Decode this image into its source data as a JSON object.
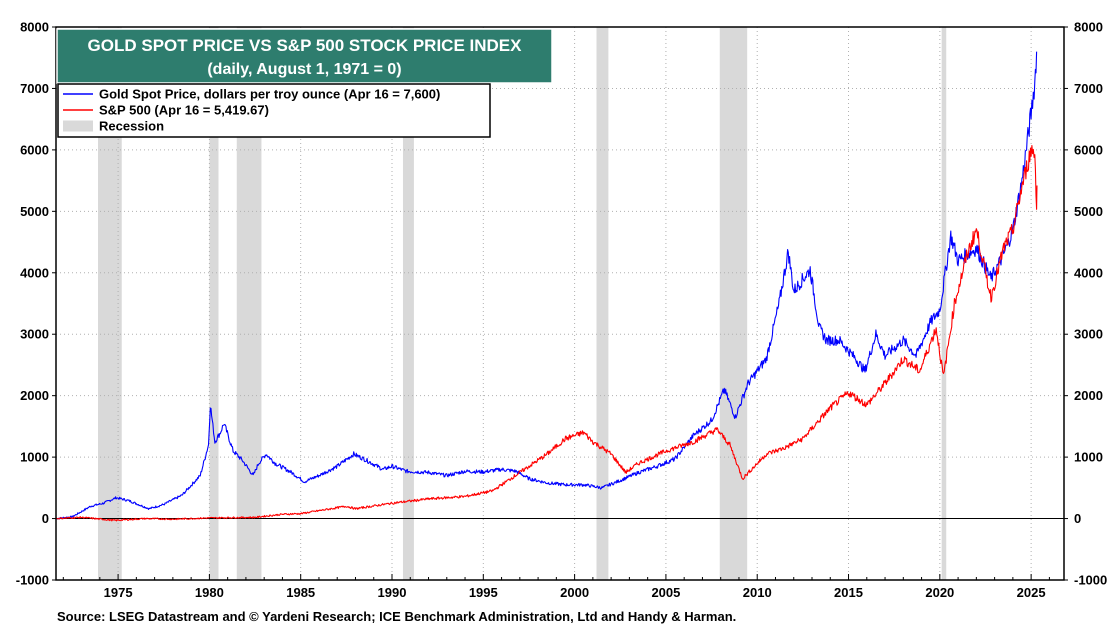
{
  "chart_data": {
    "type": "line",
    "title": "GOLD SPOT PRICE VS S&P 500 STOCK PRICE INDEX",
    "subtitle": "(daily, August 1, 1971 = 0)",
    "title_box_color": "#2e7d6e",
    "xlim": [
      1971.6,
      2026.8
    ],
    "ylim": [
      -1000,
      8000
    ],
    "y_ticks": [
      -1000,
      0,
      1000,
      2000,
      3000,
      4000,
      5000,
      6000,
      7000,
      8000
    ],
    "x_ticks": [
      1975,
      1980,
      1985,
      1990,
      1995,
      2000,
      2005,
      2010,
      2015,
      2020,
      2025
    ],
    "grid": true,
    "legend_position": "top-left",
    "legend": [
      {
        "label": "Gold Spot Price, dollars per troy ounce (Apr 16 = 7,600)",
        "color": "#0000ff",
        "kind": "line"
      },
      {
        "label": "S&P 500 (Apr 16 = 5,419.67)",
        "color": "#ff0000",
        "kind": "line"
      },
      {
        "label": "Recession",
        "color": "#d9d9d9",
        "kind": "box"
      }
    ],
    "recessions": [
      [
        1973.9,
        1975.2
      ],
      [
        1980.0,
        1980.5
      ],
      [
        1981.5,
        1982.85
      ],
      [
        1990.6,
        1991.2
      ],
      [
        2001.2,
        2001.85
      ],
      [
        2007.95,
        2009.45
      ],
      [
        2020.1,
        2020.35
      ]
    ],
    "series": [
      {
        "name": "Gold Spot Price",
        "color": "#0000ff",
        "points": [
          [
            1971.6,
            0
          ],
          [
            1972.5,
            30
          ],
          [
            1973.5,
            200
          ],
          [
            1974.2,
            250
          ],
          [
            1974.9,
            340
          ],
          [
            1975.6,
            290
          ],
          [
            1976.7,
            160
          ],
          [
            1977.5,
            230
          ],
          [
            1978.5,
            380
          ],
          [
            1979.5,
            700
          ],
          [
            1979.95,
            1200
          ],
          [
            1980.05,
            1850
          ],
          [
            1980.3,
            1250
          ],
          [
            1980.6,
            1400
          ],
          [
            1980.8,
            1550
          ],
          [
            1981.3,
            1100
          ],
          [
            1981.8,
            950
          ],
          [
            1982.4,
            700
          ],
          [
            1982.7,
            900
          ],
          [
            1983.1,
            1050
          ],
          [
            1983.6,
            900
          ],
          [
            1984.5,
            750
          ],
          [
            1985.2,
            600
          ],
          [
            1986.0,
            700
          ],
          [
            1987.0,
            850
          ],
          [
            1987.9,
            1050
          ],
          [
            1988.6,
            950
          ],
          [
            1989.5,
            800
          ],
          [
            1990.0,
            850
          ],
          [
            1990.8,
            770
          ],
          [
            1992.0,
            750
          ],
          [
            1993.0,
            700
          ],
          [
            1994.0,
            770
          ],
          [
            1995.0,
            760
          ],
          [
            1996.0,
            800
          ],
          [
            1996.8,
            770
          ],
          [
            1997.5,
            650
          ],
          [
            1998.5,
            580
          ],
          [
            1999.5,
            550
          ],
          [
            2000.5,
            550
          ],
          [
            2001.5,
            500
          ],
          [
            2002.5,
            620
          ],
          [
            2003.5,
            750
          ],
          [
            2004.5,
            850
          ],
          [
            2005.5,
            970
          ],
          [
            2006.5,
            1350
          ],
          [
            2007.5,
            1600
          ],
          [
            2008.2,
            2100
          ],
          [
            2008.8,
            1650
          ],
          [
            2009.5,
            2200
          ],
          [
            2010.5,
            2600
          ],
          [
            2011.2,
            3500
          ],
          [
            2011.7,
            4350
          ],
          [
            2012.0,
            3700
          ],
          [
            2012.5,
            3900
          ],
          [
            2012.9,
            4050
          ],
          [
            2013.4,
            3100
          ],
          [
            2013.8,
            2900
          ],
          [
            2014.5,
            2900
          ],
          [
            2015.4,
            2600
          ],
          [
            2015.9,
            2400
          ],
          [
            2016.5,
            3000
          ],
          [
            2017.0,
            2650
          ],
          [
            2018.0,
            2900
          ],
          [
            2018.7,
            2650
          ],
          [
            2019.5,
            3200
          ],
          [
            2020.0,
            3400
          ],
          [
            2020.6,
            4600
          ],
          [
            2021.0,
            4200
          ],
          [
            2022.0,
            4400
          ],
          [
            2022.8,
            3900
          ],
          [
            2023.5,
            4300
          ],
          [
            2024.0,
            4700
          ],
          [
            2024.5,
            5500
          ],
          [
            2025.0,
            6600
          ],
          [
            2025.2,
            7100
          ],
          [
            2025.3,
            7600
          ]
        ]
      },
      {
        "name": "S&P 500",
        "color": "#ff0000",
        "points": [
          [
            1971.6,
            0
          ],
          [
            1973.0,
            20
          ],
          [
            1974.8,
            -30
          ],
          [
            1976.5,
            0
          ],
          [
            1978.0,
            -10
          ],
          [
            1980.0,
            10
          ],
          [
            1982.5,
            20
          ],
          [
            1984.0,
            70
          ],
          [
            1985.0,
            80
          ],
          [
            1987.5,
            200
          ],
          [
            1988.0,
            160
          ],
          [
            1990.0,
            250
          ],
          [
            1992.0,
            320
          ],
          [
            1994.0,
            360
          ],
          [
            1995.5,
            450
          ],
          [
            1997.5,
            850
          ],
          [
            1998.5,
            1050
          ],
          [
            1999.5,
            1300
          ],
          [
            2000.5,
            1400
          ],
          [
            2001.0,
            1250
          ],
          [
            2002.0,
            1050
          ],
          [
            2002.8,
            750
          ],
          [
            2003.5,
            900
          ],
          [
            2005.0,
            1100
          ],
          [
            2006.5,
            1250
          ],
          [
            2007.8,
            1450
          ],
          [
            2008.5,
            1200
          ],
          [
            2009.2,
            650
          ],
          [
            2010.5,
            1050
          ],
          [
            2011.5,
            1150
          ],
          [
            2012.5,
            1300
          ],
          [
            2014.0,
            1800
          ],
          [
            2015.0,
            2050
          ],
          [
            2016.0,
            1850
          ],
          [
            2017.0,
            2200
          ],
          [
            2018.0,
            2600
          ],
          [
            2018.9,
            2400
          ],
          [
            2019.8,
            3100
          ],
          [
            2020.2,
            2300
          ],
          [
            2020.8,
            3500
          ],
          [
            2021.5,
            4300
          ],
          [
            2022.0,
            4700
          ],
          [
            2022.8,
            3600
          ],
          [
            2023.5,
            4400
          ],
          [
            2024.0,
            4700
          ],
          [
            2024.5,
            5400
          ],
          [
            2025.0,
            6000
          ],
          [
            2025.2,
            5950
          ],
          [
            2025.3,
            5100
          ],
          [
            2025.32,
            5419.67
          ]
        ]
      }
    ],
    "source": "Source: LSEG Datastream and © Yardeni Research; ICE Benchmark Administration, Ltd and Handy & Harman."
  }
}
